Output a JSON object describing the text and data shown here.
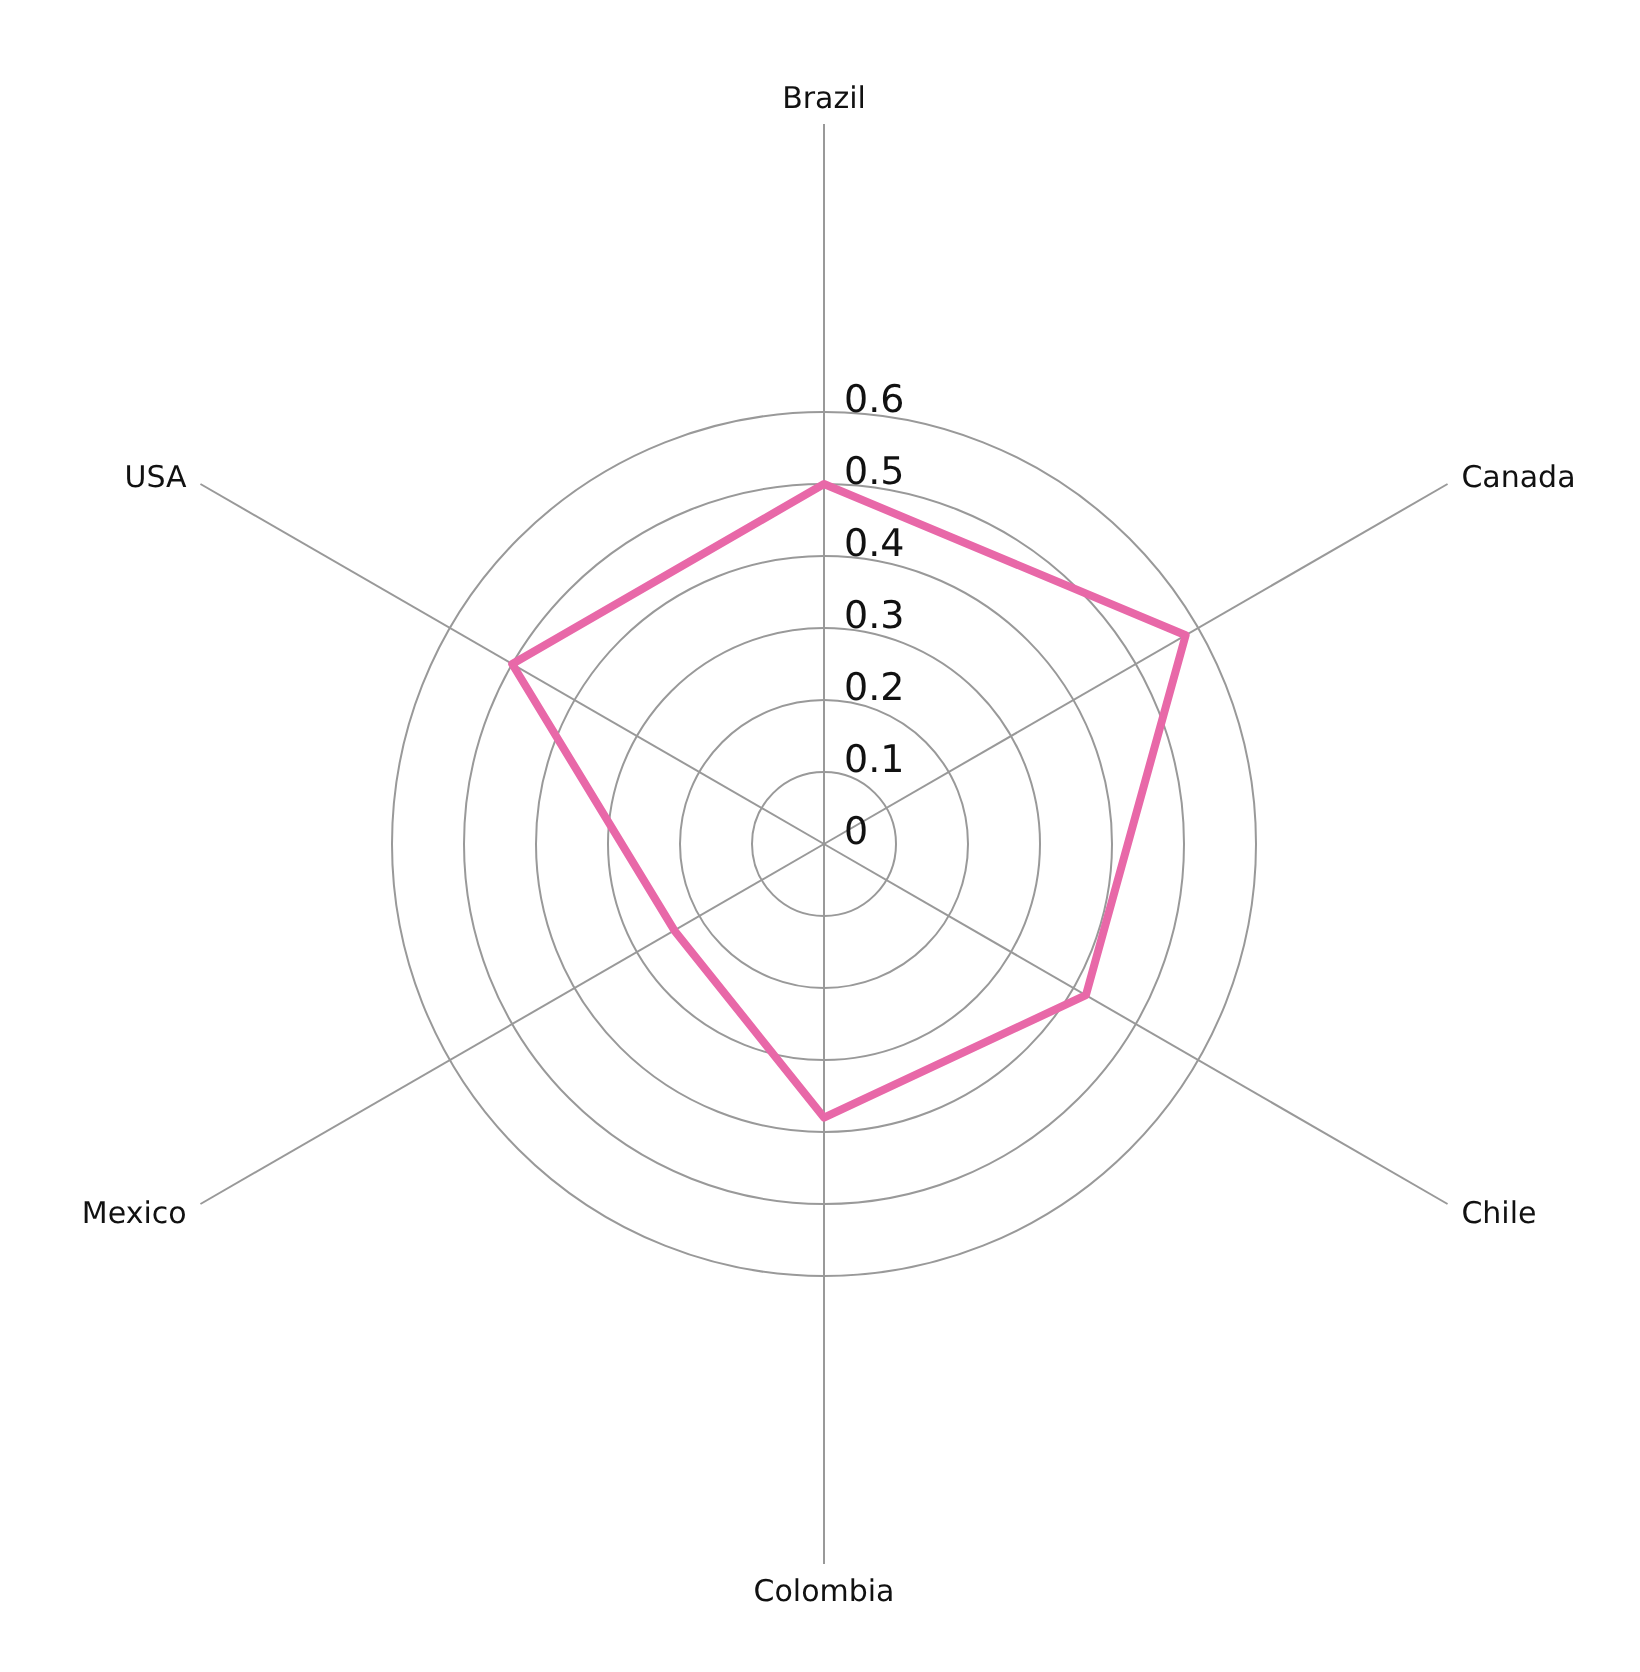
{
  "chart_data": {
    "type": "radar",
    "categories": [
      "Brazil",
      "Canada",
      "Chile",
      "Colombia",
      "Mexico",
      "USA"
    ],
    "series": [
      {
        "color": "#e868a8",
        "values": [
          0.5,
          0.58,
          0.42,
          0.38,
          0.24,
          0.5
        ]
      }
    ],
    "ylim": [
      0,
      0.6
    ],
    "yticks": [
      0,
      0.1,
      0.2,
      0.3,
      0.4,
      0.5,
      0.6
    ],
    "grid": true,
    "marker": "none",
    "legend": false
  }
}
